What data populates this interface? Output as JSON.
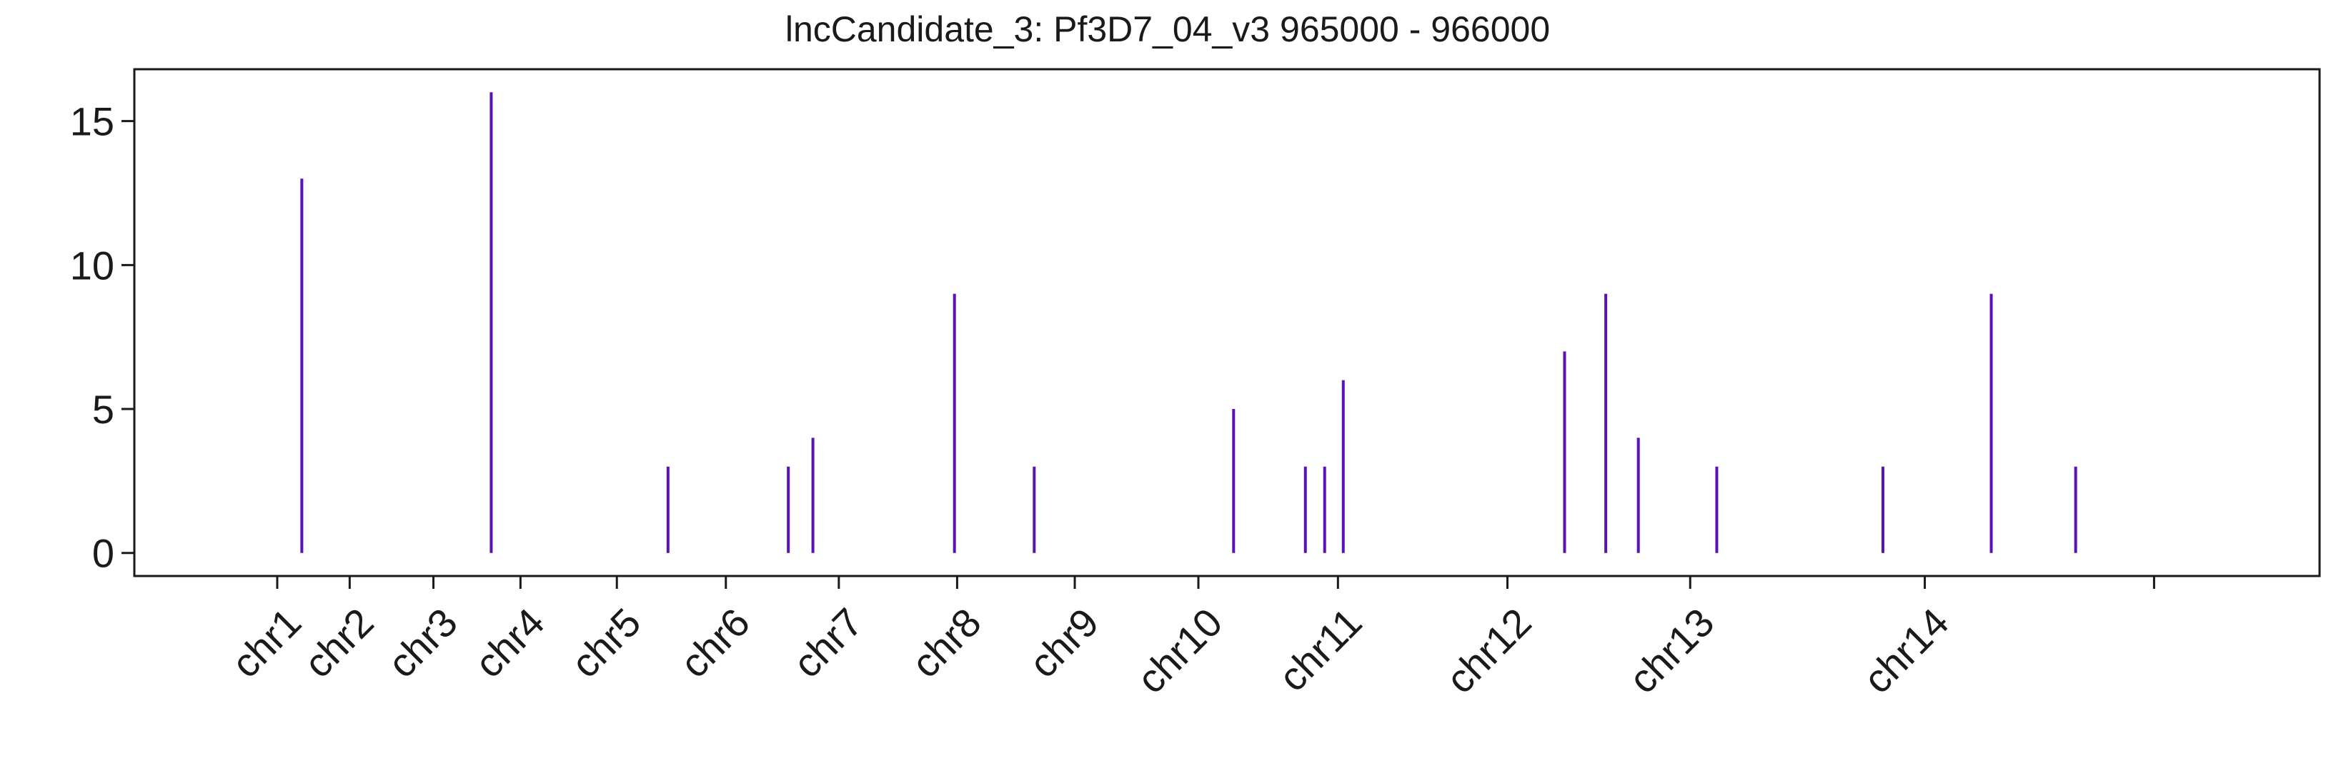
{
  "chart_data": {
    "type": "bar",
    "title": "lncCandidate_3: Pf3D7_04_v3 965000 - 966000",
    "xlabel": "",
    "ylabel": "",
    "ylim": [
      -0.8,
      16.8
    ],
    "y_ticks": [
      0,
      5,
      10,
      15
    ],
    "x_ticks": [
      {
        "label": "chr1",
        "pos": 0
      },
      {
        "label": "chr2",
        "pos": 1.09
      },
      {
        "label": "chr3",
        "pos": 2.35
      },
      {
        "label": "chr4",
        "pos": 3.66
      },
      {
        "label": "chr5",
        "pos": 5.11
      },
      {
        "label": "chr6",
        "pos": 6.75
      },
      {
        "label": "chr7",
        "pos": 8.45
      },
      {
        "label": "chr8",
        "pos": 10.23
      },
      {
        "label": "chr9",
        "pos": 12.0
      },
      {
        "label": "chr10",
        "pos": 13.86
      },
      {
        "label": "chr11",
        "pos": 15.96
      },
      {
        "label": "chr12",
        "pos": 18.51
      },
      {
        "label": "chr13",
        "pos": 21.26
      },
      {
        "label": "chr14",
        "pos": 24.79
      },
      {
        "label": "",
        "pos": 28.24
      }
    ],
    "xlim": [
      -2.15,
      30.73
    ],
    "series": [
      {
        "color": "#5b10b8",
        "points": [
          {
            "x": 0.37,
            "y": 13
          },
          {
            "x": 3.22,
            "y": 16
          },
          {
            "x": 5.88,
            "y": 3
          },
          {
            "x": 7.69,
            "y": 3
          },
          {
            "x": 8.06,
            "y": 4
          },
          {
            "x": 10.19,
            "y": 9
          },
          {
            "x": 11.39,
            "y": 3
          },
          {
            "x": 14.39,
            "y": 5
          },
          {
            "x": 15.47,
            "y": 3
          },
          {
            "x": 15.76,
            "y": 3
          },
          {
            "x": 16.04,
            "y": 6
          },
          {
            "x": 19.37,
            "y": 7
          },
          {
            "x": 19.99,
            "y": 9
          },
          {
            "x": 20.48,
            "y": 4
          },
          {
            "x": 21.66,
            "y": 3
          },
          {
            "x": 24.16,
            "y": 3
          },
          {
            "x": 25.79,
            "y": 9
          },
          {
            "x": 27.06,
            "y": 3
          }
        ]
      }
    ],
    "grid": false,
    "legend": "none"
  }
}
